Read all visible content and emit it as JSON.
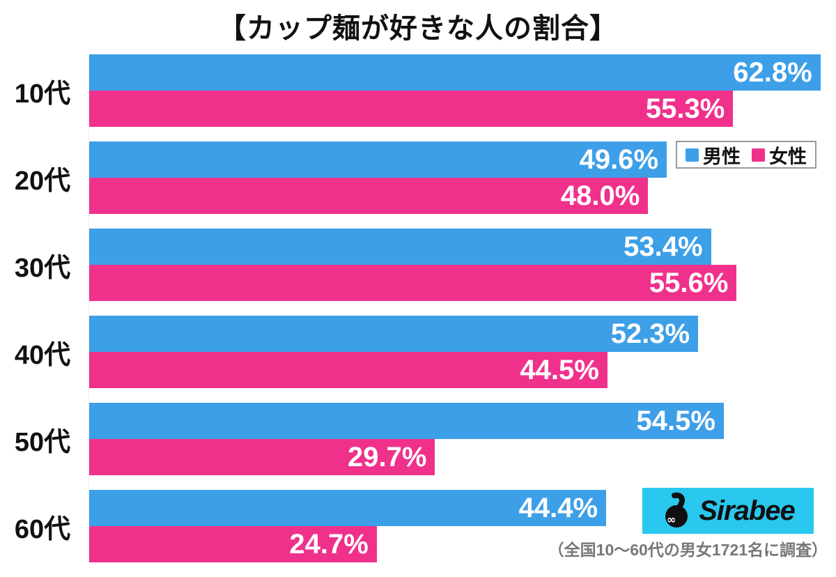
{
  "title": "【カップ麺が好きな人の割合】",
  "footer_note": "（全国10～60代の男女1721名に調査）",
  "logo": {
    "text": "Sirabee",
    "icon": "sirabee-bee-icon",
    "bg_color": "#2AC7EE",
    "icon_color": "#101010"
  },
  "chart_data": {
    "type": "bar",
    "orientation": "horizontal",
    "title": "【カップ麺が好きな人の割合】",
    "categories": [
      "10代",
      "20代",
      "30代",
      "40代",
      "50代",
      "60代"
    ],
    "series": [
      {
        "name": "男性",
        "color": "#3D9FE8",
        "values": [
          62.8,
          49.6,
          53.4,
          52.3,
          54.5,
          44.4
        ]
      },
      {
        "name": "女性",
        "color": "#F0318C",
        "values": [
          55.3,
          48.0,
          55.6,
          44.5,
          29.7,
          24.7
        ]
      }
    ],
    "value_suffix": "%",
    "value_labels": "inside-end",
    "xlim": [
      0,
      63.3
    ],
    "grid": false,
    "legend_position": "top-right"
  }
}
